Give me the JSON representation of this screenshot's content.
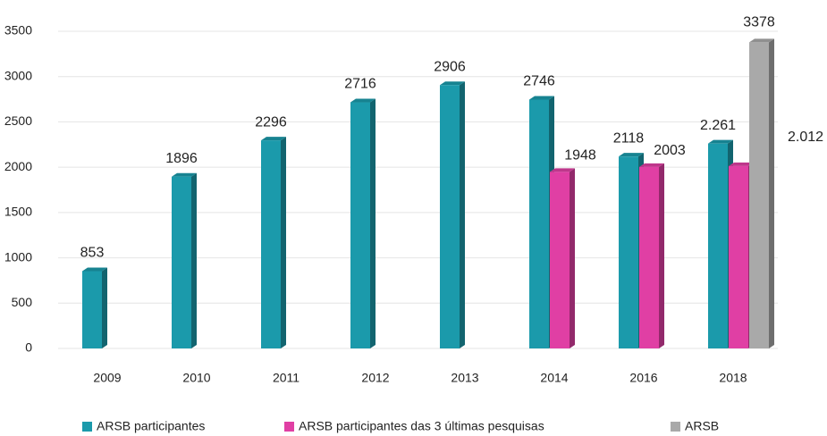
{
  "chart_data": {
    "type": "bar",
    "categories": [
      "2009",
      "2010",
      "2011",
      "2012",
      "2013",
      "2014",
      "2016",
      "2018"
    ],
    "series": [
      {
        "name": "ARSB participantes",
        "color": "#1b9aab",
        "values": [
          853,
          1896,
          2296,
          2716,
          2906,
          2746,
          2118,
          2261
        ],
        "value_labels": [
          "853",
          "1896",
          "2296",
          "2716",
          "2906",
          "2746",
          "2118",
          "2.261"
        ]
      },
      {
        "name": "ARSB participantes das 3 últimas pesquisas",
        "color": "#e03fa4",
        "values": [
          null,
          null,
          null,
          null,
          null,
          1948,
          2003,
          2012
        ],
        "value_labels": [
          null,
          null,
          null,
          null,
          null,
          "1948",
          "2003",
          "2.012"
        ]
      },
      {
        "name": "ARSB",
        "color": "#a9a9a9",
        "values": [
          null,
          null,
          null,
          null,
          null,
          null,
          null,
          3378
        ]
      }
    ],
    "ylim": [
      0,
      3500
    ],
    "yticks": [
      0,
      500,
      1000,
      1500,
      2000,
      2500,
      3000,
      3500
    ],
    "grid": true,
    "legend": "bottom"
  }
}
